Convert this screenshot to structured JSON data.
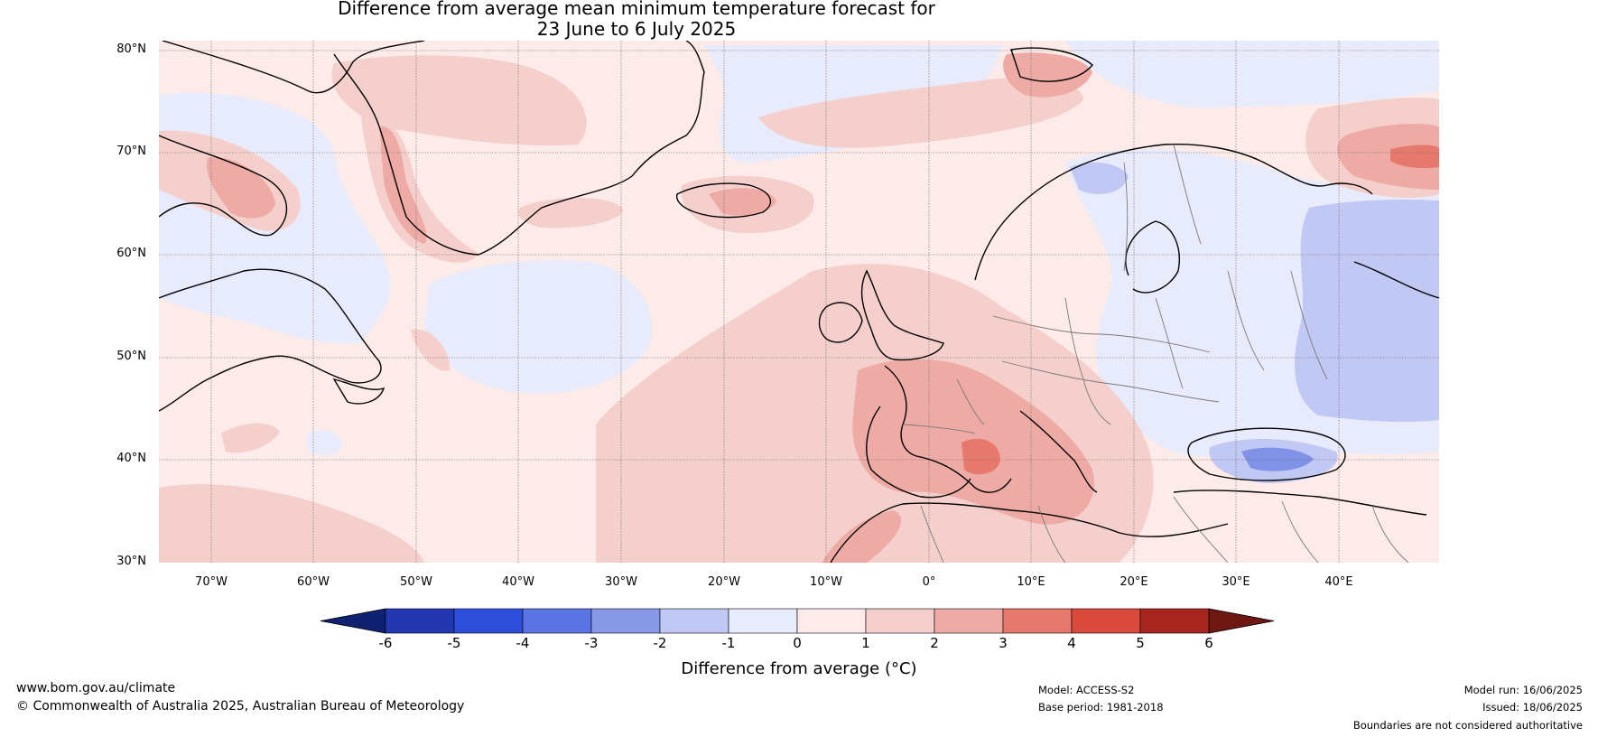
{
  "title_line1": "Difference from average mean minimum temperature forecast for",
  "title_line2": "23 June to 6 July 2025",
  "lat_labels": [
    "80°N",
    "70°N",
    "60°N",
    "50°N",
    "40°N",
    "30°N"
  ],
  "lon_labels": [
    "70°W",
    "60°W",
    "50°W",
    "40°W",
    "30°W",
    "20°W",
    "10°W",
    "0°",
    "10°E",
    "20°E",
    "30°E",
    "40°E"
  ],
  "colorbar": {
    "ticks": [
      "-6",
      "-5",
      "-4",
      "-3",
      "-2",
      "-1",
      "0",
      "1",
      "2",
      "3",
      "4",
      "5",
      "6"
    ],
    "colors": [
      "#0f2170",
      "#2338b0",
      "#2e4fdc",
      "#5a74e4",
      "#8899e8",
      "#c0c8f3",
      "#e8ebfb",
      "#fcebe9",
      "#f5cfcc",
      "#eeaaa5",
      "#e6786e",
      "#d94a3d",
      "#a82620",
      "#6e1713"
    ],
    "label": "Difference from average (°C)"
  },
  "footer": {
    "website": "www.bom.gov.au/climate",
    "copyright": "© Commonwealth of Australia 2025, Australian Bureau of Meteorology",
    "model": "Model: ACCESS-S2",
    "base_period": "Base period: 1981-2018",
    "model_run": "Model run: 16/06/2025",
    "issued": "Issued: 18/06/2025",
    "disclaimer": "Boundaries are not considered authoritative"
  }
}
